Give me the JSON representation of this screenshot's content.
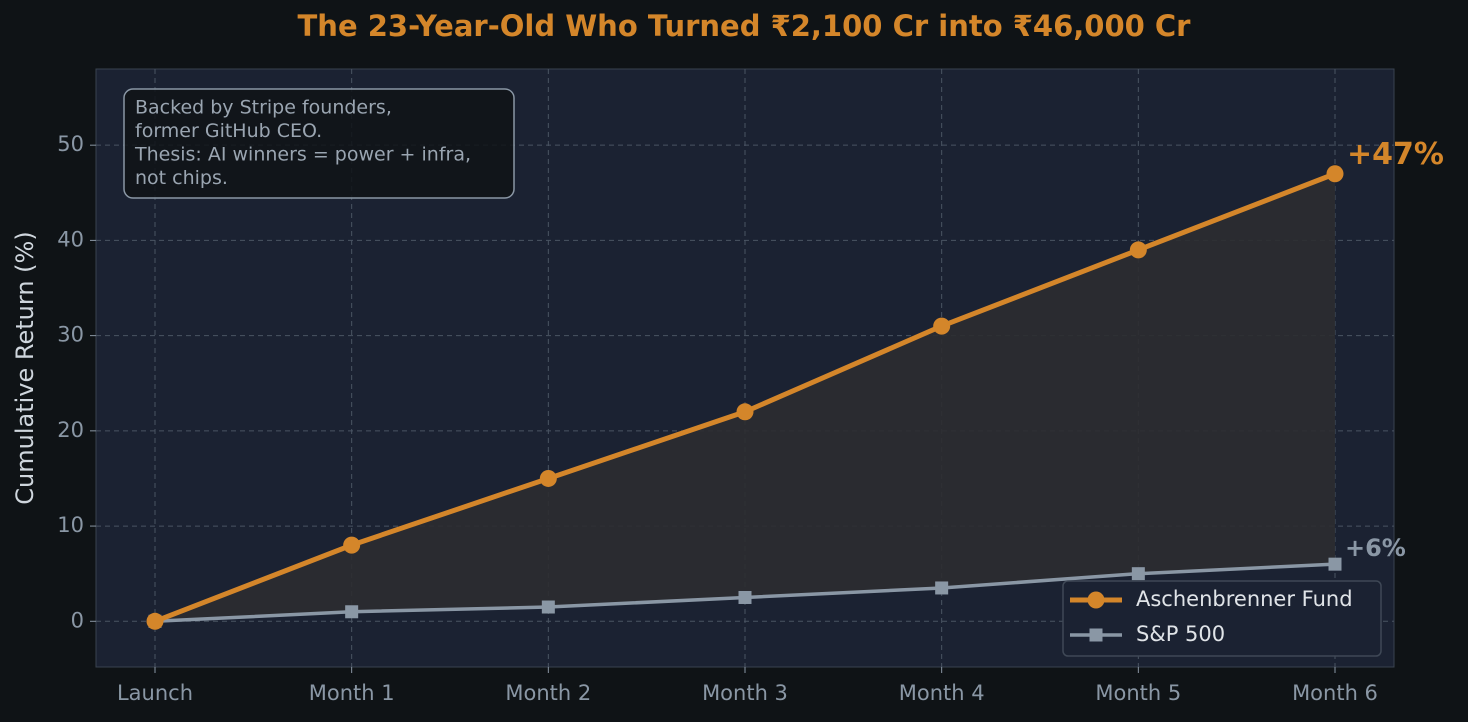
{
  "chart_data": {
    "type": "line",
    "title": "The 23-Year-Old Who Turned ₹2,100 Cr into ₹46,000 Cr",
    "y_label": "Cumulative Return (%)",
    "categories": [
      "Launch",
      "Month 1",
      "Month 2",
      "Month 3",
      "Month 4",
      "Month 5",
      "Month 6"
    ],
    "series": [
      {
        "name": "Aschenbrenner Fund",
        "color": "#d4862a",
        "marker": "circle",
        "values": [
          0,
          8,
          15,
          22,
          31,
          39,
          47
        ],
        "value_labels": [
          null,
          null,
          null,
          null,
          null,
          null,
          "+47%"
        ]
      },
      {
        "name": "S&P 500",
        "color": "#8a97a5",
        "marker": "square",
        "values": [
          0,
          1,
          1.5,
          2.5,
          3.5,
          5,
          6
        ],
        "value_labels": [
          null,
          null,
          null,
          null,
          null,
          null,
          "+6%"
        ]
      }
    ],
    "annotation": [
      "Backed by Stripe founders,",
      "former GitHub CEO.",
      "Thesis: AI winners = power + infra,",
      "not chips."
    ],
    "ylim": [
      -4.8,
      58
    ],
    "yticks": [
      0,
      10,
      20,
      30,
      40,
      50
    ],
    "grid": true,
    "fill_between": true,
    "legend": "lower right"
  }
}
